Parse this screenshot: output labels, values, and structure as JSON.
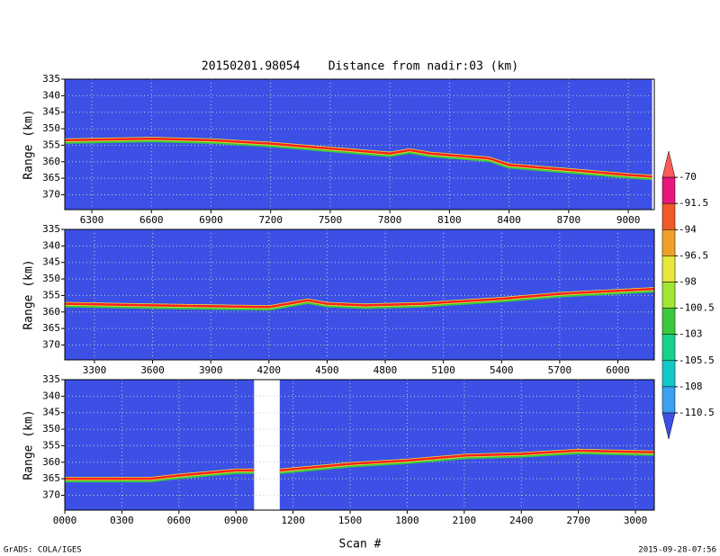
{
  "title": "20150201.98054    Distance from nadir:03 (km)",
  "x_label": "Scan #",
  "footer_left": "GrADS: COLA/IGES",
  "footer_right": "2015-09-28-07:56",
  "colorbar": {
    "labels": [
      -70,
      -91.5,
      -94,
      -96.5,
      -98,
      -100.5,
      -103,
      -105.5,
      -108,
      -110.5
    ],
    "colors": [
      "#ff5a5a",
      "#e6177d",
      "#f05a28",
      "#f0a028",
      "#e6e63c",
      "#a0e632",
      "#3cc83c",
      "#14d28c",
      "#14c8c8",
      "#3ca0f0",
      "#3c50e6"
    ]
  },
  "chart_data": [
    {
      "type": "line",
      "y_label": "Range (km)",
      "color": "#ff2020",
      "background": "#3c50e6",
      "grid": true,
      "x": [
        6164,
        6600,
        6900,
        7200,
        7500,
        7800,
        7900,
        8000,
        8200,
        8300,
        8400,
        8700,
        9000,
        9120
      ],
      "values": [
        353.5,
        353,
        353.5,
        354.5,
        356,
        357.5,
        356.5,
        357.5,
        358.5,
        359,
        361,
        362.5,
        364,
        364.5
      ],
      "xlim": [
        6164,
        9131
      ],
      "ylim": [
        374.5,
        335
      ],
      "xticks": [
        6300,
        6600,
        6900,
        7200,
        7500,
        7800,
        8100,
        8400,
        8700,
        9000
      ],
      "yticks": [
        335,
        340,
        345,
        350,
        355,
        360,
        365,
        370
      ]
    },
    {
      "type": "line",
      "y_label": "Range (km)",
      "color": "#ff2020",
      "background": "#3c50e6",
      "grid": true,
      "x": [
        3147,
        3600,
        4200,
        4300,
        4400,
        4500,
        4700,
        5000,
        5400,
        5700,
        6188
      ],
      "values": [
        357.5,
        358,
        358.5,
        357.5,
        356.5,
        357.5,
        358,
        357.5,
        356,
        354.5,
        353
      ],
      "xlim": [
        3147,
        6188
      ],
      "ylim": [
        374.5,
        335
      ],
      "xticks": [
        3300,
        3600,
        3900,
        4200,
        4500,
        4800,
        5100,
        5400,
        5700,
        6000
      ],
      "yticks": [
        335,
        340,
        345,
        350,
        355,
        360,
        365,
        370
      ]
    },
    {
      "type": "line",
      "y_label": "Range (km)",
      "color": "#ff2020",
      "background": "#3c50e6",
      "grid": true,
      "x": [
        0,
        450,
        600,
        900,
        995,
        1060,
        1130,
        1500,
        1800,
        2100,
        2400,
        2700,
        3099
      ],
      "values": [
        365,
        365,
        364,
        362.5,
        362.5,
        null,
        362.5,
        360.5,
        359.5,
        358,
        357.5,
        356.5,
        357
      ],
      "xlim": [
        0,
        3099
      ],
      "ylim": [
        374.5,
        335
      ],
      "xticks": [
        {
          "value": 0,
          "label": "0000"
        },
        {
          "value": 300,
          "label": "0300"
        },
        {
          "value": 600,
          "label": "0600"
        },
        {
          "value": 900,
          "label": "0900"
        },
        1200,
        1500,
        1800,
        2100,
        2400,
        2700,
        3000
      ],
      "yticks": [
        335,
        340,
        345,
        350,
        355,
        360,
        365,
        370
      ]
    }
  ]
}
